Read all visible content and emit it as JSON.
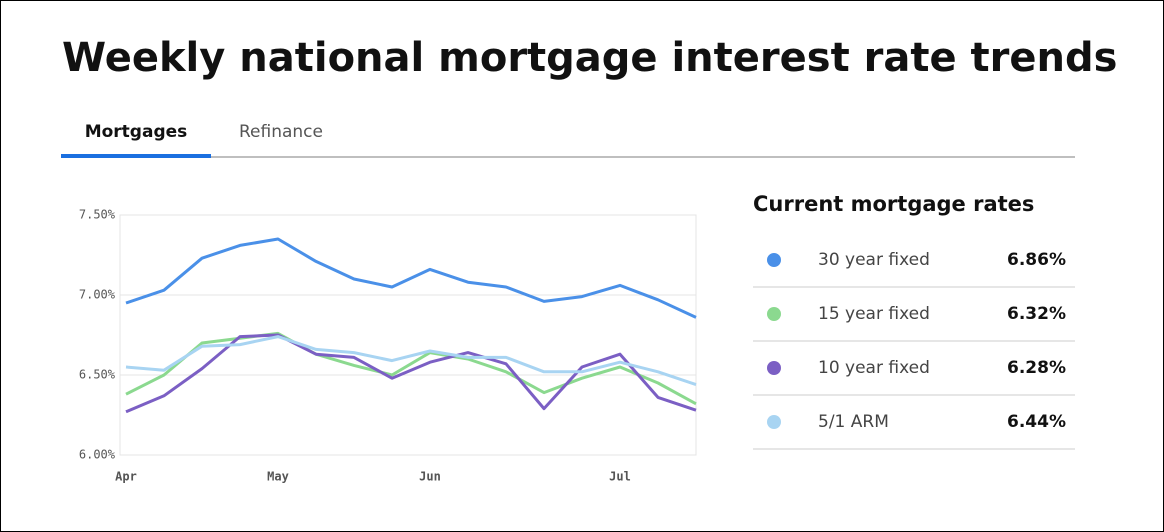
{
  "header": {
    "title": "Weekly national mortgage interest rate trends"
  },
  "tabs": [
    "Mortgages",
    "Refinance"
  ],
  "chart_data": {
    "type": "line",
    "categories": [
      "Apr",
      null,
      null,
      null,
      "May",
      null,
      null,
      null,
      "Jun",
      null,
      null,
      null,
      null,
      "Jul",
      null,
      null
    ],
    "ylim": [
      6.0,
      7.5
    ],
    "yticks": [
      {
        "value": 6.0,
        "label": "6.00%"
      },
      {
        "value": 6.5,
        "label": "6.50%"
      },
      {
        "value": 7.0,
        "label": "7.00%"
      },
      {
        "value": 7.5,
        "label": "7.50%"
      }
    ],
    "grid": true,
    "series": [
      {
        "name": "30 year fixed",
        "color": "#4a90e8",
        "values": [
          6.95,
          7.03,
          7.23,
          7.31,
          7.35,
          7.21,
          7.1,
          7.05,
          7.16,
          7.08,
          7.05,
          6.96,
          6.99,
          7.06,
          6.97,
          6.86
        ]
      },
      {
        "name": "15 year fixed",
        "color": "#8bd98f",
        "values": [
          6.38,
          6.5,
          6.7,
          6.73,
          6.76,
          6.63,
          6.56,
          6.5,
          6.64,
          6.6,
          6.52,
          6.39,
          6.48,
          6.55,
          6.45,
          6.32
        ]
      },
      {
        "name": "10 year fixed",
        "color": "#7b5fc4",
        "values": [
          6.27,
          6.37,
          6.54,
          6.74,
          6.75,
          6.63,
          6.61,
          6.48,
          6.58,
          6.64,
          6.57,
          6.29,
          6.55,
          6.63,
          6.36,
          6.28
        ]
      },
      {
        "name": "5/1 ARM",
        "color": "#a8d4f2",
        "values": [
          6.55,
          6.53,
          6.68,
          6.69,
          6.74,
          6.66,
          6.64,
          6.59,
          6.65,
          6.61,
          6.61,
          6.52,
          6.52,
          6.58,
          6.52,
          6.44
        ]
      }
    ]
  },
  "rates_table": {
    "title": "Current mortgage rates",
    "rates": [
      "6.86%",
      "6.32%",
      "6.28%",
      "6.44%"
    ]
  }
}
